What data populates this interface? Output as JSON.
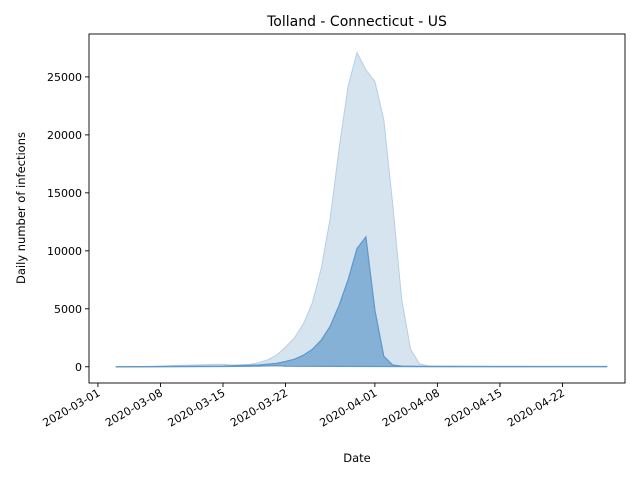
{
  "chart_data": {
    "type": "area",
    "title": "Tolland - Connecticut - US",
    "xlabel": "Date",
    "ylabel": "Daily number of infections",
    "x_tick_labels": [
      "2020-03-01",
      "2020-03-08",
      "2020-03-15",
      "2020-03-22",
      "2020-04-01",
      "2020-04-08",
      "2020-04-15",
      "2020-04-22"
    ],
    "y_tick_labels": [
      "0",
      "5000",
      "10000",
      "15000",
      "20000",
      "25000"
    ],
    "xlim": [
      "2020-02-29",
      "2020-04-29"
    ],
    "ylim": [
      -1400,
      28700
    ],
    "grid": false,
    "legend": "none",
    "colors": {
      "outer_fill": "#d6e4f0",
      "outer_edge": "#b6cee3",
      "inner_fill": "#86b1d6",
      "inner_edge": "#5e97c9"
    },
    "series": [
      {
        "role": "upper band",
        "points": [
          [
            "2020-03-03",
            0
          ],
          [
            "2020-03-06",
            10
          ],
          [
            "2020-03-08",
            60
          ],
          [
            "2020-03-10",
            120
          ],
          [
            "2020-03-12",
            150
          ],
          [
            "2020-03-14",
            200
          ],
          [
            "2020-03-15",
            200
          ],
          [
            "2020-03-16",
            150
          ],
          [
            "2020-03-17",
            180
          ],
          [
            "2020-03-18",
            200
          ],
          [
            "2020-03-19",
            350
          ],
          [
            "2020-03-20",
            600
          ],
          [
            "2020-03-21",
            1000
          ],
          [
            "2020-03-22",
            1700
          ],
          [
            "2020-03-23",
            2500
          ],
          [
            "2020-03-24",
            3700
          ],
          [
            "2020-03-25",
            5500
          ],
          [
            "2020-03-26",
            8500
          ],
          [
            "2020-03-27",
            12800
          ],
          [
            "2020-03-28",
            18800
          ],
          [
            "2020-03-29",
            24200
          ],
          [
            "2020-03-30",
            27100
          ],
          [
            "2020-03-31",
            25600
          ],
          [
            "2020-04-01",
            24600
          ],
          [
            "2020-04-02",
            21300
          ],
          [
            "2020-04-03",
            14000
          ],
          [
            "2020-04-04",
            5800
          ],
          [
            "2020-04-05",
            1500
          ],
          [
            "2020-04-06",
            250
          ],
          [
            "2020-04-07",
            70
          ],
          [
            "2020-04-08",
            50
          ],
          [
            "2020-04-15",
            30
          ],
          [
            "2020-04-22",
            20
          ],
          [
            "2020-04-27",
            20
          ]
        ]
      },
      {
        "role": "central estimate",
        "points": [
          [
            "2020-03-03",
            0
          ],
          [
            "2020-03-08",
            20
          ],
          [
            "2020-03-15",
            60
          ],
          [
            "2020-03-19",
            150
          ],
          [
            "2020-03-21",
            300
          ],
          [
            "2020-03-22",
            450
          ],
          [
            "2020-03-23",
            650
          ],
          [
            "2020-03-24",
            1000
          ],
          [
            "2020-03-25",
            1500
          ],
          [
            "2020-03-26",
            2300
          ],
          [
            "2020-03-27",
            3500
          ],
          [
            "2020-03-28",
            5300
          ],
          [
            "2020-03-29",
            7500
          ],
          [
            "2020-03-30",
            10200
          ],
          [
            "2020-03-31",
            11200
          ],
          [
            "2020-04-01",
            4900
          ],
          [
            "2020-04-02",
            900
          ],
          [
            "2020-04-03",
            150
          ],
          [
            "2020-04-04",
            60
          ],
          [
            "2020-04-06",
            40
          ],
          [
            "2020-04-08",
            30
          ],
          [
            "2020-04-15",
            20
          ],
          [
            "2020-04-22",
            20
          ],
          [
            "2020-04-27",
            20
          ]
        ]
      },
      {
        "role": "lower band",
        "points": [
          [
            "2020-03-03",
            0
          ],
          [
            "2020-03-15",
            20
          ],
          [
            "2020-03-19",
            60
          ],
          [
            "2020-03-21",
            100
          ],
          [
            "2020-03-22",
            50
          ],
          [
            "2020-03-28",
            30
          ],
          [
            "2020-04-01",
            20
          ],
          [
            "2020-04-08",
            10
          ],
          [
            "2020-04-27",
            10
          ]
        ]
      }
    ]
  }
}
